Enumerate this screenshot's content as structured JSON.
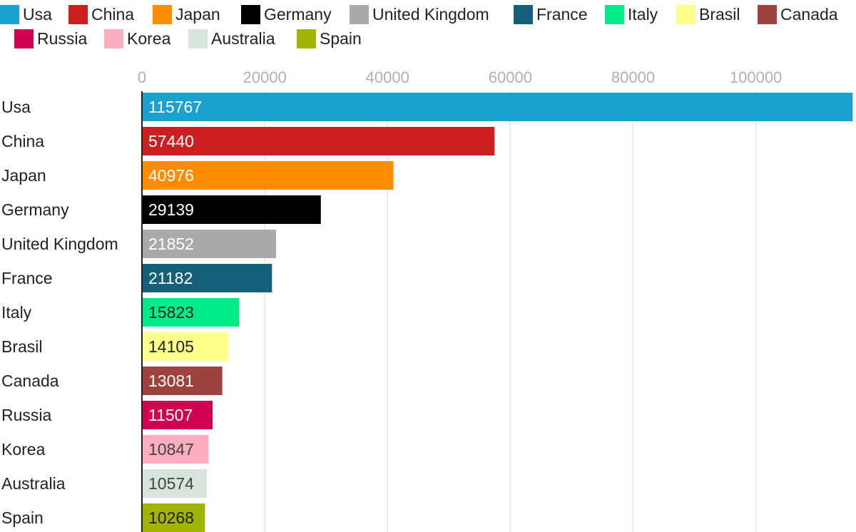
{
  "chart_data": {
    "type": "bar",
    "orientation": "horizontal",
    "categories": [
      "Usa",
      "China",
      "Japan",
      "Germany",
      "United Kingdom",
      "France",
      "Italy",
      "Brasil",
      "Canada",
      "Russia",
      "Korea",
      "Australia",
      "Spain"
    ],
    "values": [
      115767,
      57440,
      40976,
      29139,
      21852,
      21182,
      15823,
      14105,
      13081,
      11507,
      10847,
      10574,
      10268
    ],
    "colors": [
      "#1aa1d0",
      "#cc1f1f",
      "#fd8c00",
      "#000000",
      "#aaaaaa",
      "#156078",
      "#00ec8b",
      "#fefe8b",
      "#9d423e",
      "#d0024f",
      "#fdadbd",
      "#d6e4dd",
      "#a0b400"
    ],
    "label_colors": [
      "#ffffff",
      "#ffffff",
      "#ffffff",
      "#ffffff",
      "#ffffff",
      "#ffffff",
      "#222222",
      "#222222",
      "#ffffff",
      "#ffffff",
      "#444444",
      "#444444",
      "#222222"
    ],
    "x_ticks": [
      "0",
      "20000",
      "40000",
      "60000",
      "80000",
      "100000"
    ],
    "xlim": [
      0,
      115767
    ],
    "legend": [
      "Usa",
      "China",
      "Japan",
      "Germany",
      "United Kingdom",
      "France",
      "Italy",
      "Brasil",
      "Canada",
      "Russia",
      "Korea",
      "Australia",
      "Spain"
    ],
    "legend_placement": "top",
    "grid": true,
    "title": "",
    "xlabel": "",
    "ylabel": ""
  }
}
